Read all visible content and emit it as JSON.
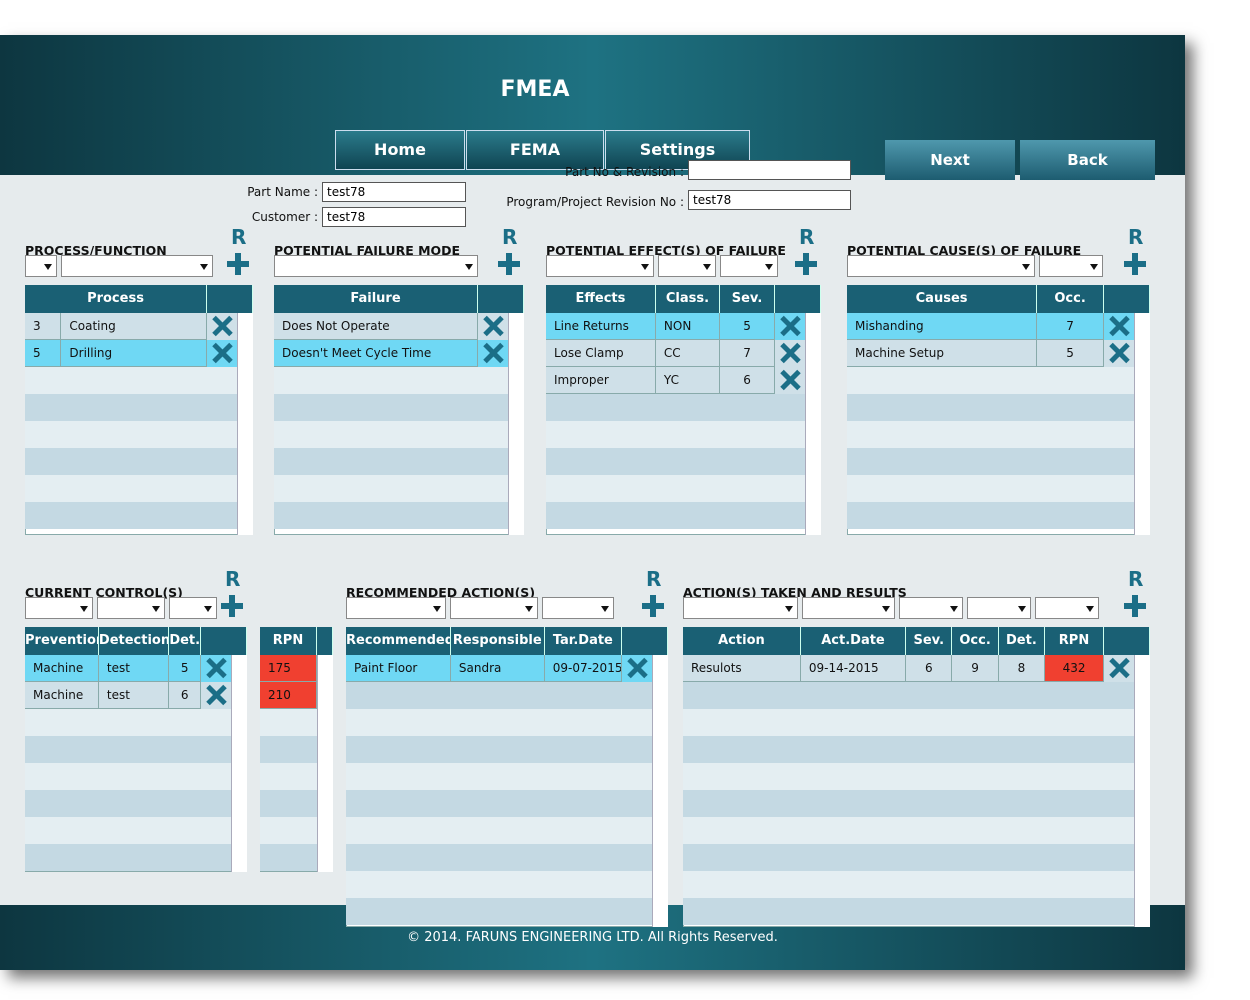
{
  "title": "FMEA",
  "tabs": [
    "Home",
    "FEMA",
    "Settings"
  ],
  "buttons": [
    "Next",
    "Back"
  ],
  "fields": {
    "part_name_label": "Part Name :",
    "part_name": "test78",
    "customer_label": "Customer :",
    "customer": "test78",
    "part_no_label": "Part No & Revision :",
    "revision_label": "Program/Project Revision No :",
    "revision": "test78"
  },
  "r_label": "R",
  "panels": {
    "process": {
      "title": "PROCESS/FUNCTION",
      "headers": [
        "Process"
      ],
      "rows": [
        [
          "3",
          "Coating"
        ],
        [
          "5",
          "Drilling"
        ]
      ]
    },
    "failure": {
      "title": "POTENTIAL FAILURE MODE",
      "headers": [
        "Failure"
      ],
      "rows": [
        [
          "Does Not Operate"
        ],
        [
          "Doesn't Meet Cycle Time"
        ]
      ]
    },
    "effects": {
      "title": "POTENTIAL EFFECT(S) OF FAILURE",
      "headers": [
        "Effects",
        "Class.",
        "Sev."
      ],
      "rows": [
        [
          "Line Returns",
          "NON",
          5
        ],
        [
          "Lose Clamp",
          "CC",
          7
        ],
        [
          "Improper",
          "YC",
          6
        ]
      ]
    },
    "causes": {
      "title": "POTENTIAL CAUSE(S) OF FAILURE",
      "headers": [
        "Causes",
        "Occ."
      ],
      "rows": [
        [
          "Mishanding",
          7
        ],
        [
          "Machine Setup",
          5
        ]
      ]
    },
    "controls": {
      "title": "CURRENT CONTROL(S)",
      "headers": [
        "Prevention",
        "Detection.",
        "Det."
      ],
      "rows": [
        [
          "Machine",
          "test",
          5
        ],
        [
          "Machine",
          "test",
          6
        ]
      ]
    },
    "rpn": {
      "headers": [
        "RPN"
      ],
      "rows": [
        [
          175
        ],
        [
          210
        ]
      ]
    },
    "actions": {
      "title": "RECOMMENDED ACTION(S)",
      "headers": [
        "Recommended",
        "Responsible",
        "Tar.Date"
      ],
      "rows": [
        [
          "Paint Floor",
          "Sandra",
          "09-07-2015"
        ]
      ]
    },
    "results": {
      "title": "ACTION(S) TAKEN AND RESULTS",
      "headers": [
        "Action",
        "Act.Date",
        "Sev.",
        "Occ.",
        "Det.",
        "RPN"
      ],
      "rows": [
        [
          "Resulots",
          "09-14-2015",
          6,
          9,
          8,
          432
        ]
      ]
    }
  },
  "footer": "© 2014. FARUNS ENGINEERING LTD. All Rights Reserved."
}
